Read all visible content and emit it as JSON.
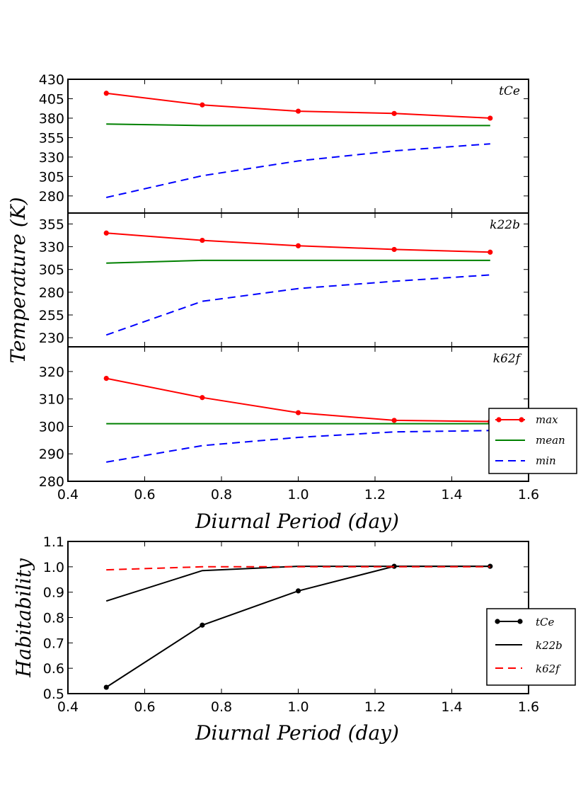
{
  "chart_data": [
    {
      "type": "line",
      "title": "",
      "xlabel": "Diurnal Period (day)",
      "ylabel": "Temperature (K)",
      "xlim": [
        0.4,
        1.6
      ],
      "xticks": [
        "0.4",
        "0.6",
        "0.8",
        "1.0",
        "1.2",
        "1.4",
        "1.6"
      ],
      "x": [
        0.5,
        0.75,
        1.0,
        1.25,
        1.5
      ],
      "legend": {
        "placement": "right, beside bottom panel",
        "entries": [
          "max",
          "mean",
          "min"
        ]
      },
      "colors": {
        "max": "#ff0000",
        "mean": "#008000",
        "min": "#0000ff"
      },
      "panels": [
        {
          "label": "tCe",
          "ylim": [
            258,
            430
          ],
          "yticks": [
            "280",
            "305",
            "330",
            "355",
            "380",
            "405",
            "430"
          ],
          "series": [
            {
              "name": "max",
              "style": "solid-dots",
              "values": [
                412,
                397,
                389,
                386,
                380
              ]
            },
            {
              "name": "mean",
              "style": "solid",
              "values": [
                372.5,
                370.5,
                370.5,
                370.5,
                370.5
              ]
            },
            {
              "name": "min",
              "style": "dashed",
              "values": [
                278,
                306,
                325,
                338,
                347
              ]
            }
          ]
        },
        {
          "label": "k22b",
          "ylim": [
            220,
            367
          ],
          "yticks": [
            "230",
            "255",
            "280",
            "305",
            "330",
            "355"
          ],
          "series": [
            {
              "name": "max",
              "style": "solid-dots",
              "values": [
                345,
                337,
                331,
                327,
                324
              ]
            },
            {
              "name": "mean",
              "style": "solid",
              "values": [
                312,
                315,
                315,
                315,
                315
              ]
            },
            {
              "name": "min",
              "style": "dashed",
              "values": [
                233,
                270,
                284,
                292,
                299
              ]
            }
          ]
        },
        {
          "label": "k62f",
          "ylim": [
            280,
            329
          ],
          "yticks": [
            "280",
            "290",
            "300",
            "310",
            "320"
          ],
          "series": [
            {
              "name": "max",
              "style": "solid-dots",
              "values": [
                317.5,
                310.5,
                305,
                302.2,
                301.8
              ]
            },
            {
              "name": "mean",
              "style": "solid",
              "values": [
                301,
                301,
                301,
                301,
                301
              ]
            },
            {
              "name": "min",
              "style": "dashed",
              "values": [
                287,
                293,
                296,
                298,
                298.5
              ]
            }
          ]
        }
      ]
    },
    {
      "type": "line",
      "title": "",
      "xlabel": "Diurnal Period (day)",
      "ylabel": "Habitability",
      "xlim": [
        0.4,
        1.6
      ],
      "ylim": [
        0.5,
        1.1
      ],
      "xticks": [
        "0.4",
        "0.6",
        "0.8",
        "1.0",
        "1.2",
        "1.4",
        "1.6"
      ],
      "yticks": [
        "0.5",
        "0.6",
        "0.7",
        "0.8",
        "0.9",
        "1.0",
        "1.1"
      ],
      "x": [
        0.5,
        0.75,
        1.0,
        1.25,
        1.5
      ],
      "legend": {
        "placement": "right",
        "entries": [
          "tCe",
          "k22b",
          "k62f"
        ]
      },
      "series": [
        {
          "name": "tCe",
          "color": "#000000",
          "style": "solid-dots",
          "values": [
            0.525,
            0.77,
            0.905,
            1.002,
            1.002
          ]
        },
        {
          "name": "k22b",
          "color": "#000000",
          "style": "solid",
          "values": [
            0.865,
            0.985,
            1.002,
            1.002,
            1.002
          ]
        },
        {
          "name": "k62f",
          "color": "#ff0000",
          "style": "dashed",
          "values": [
            0.988,
            1.0,
            1.0,
            1.0,
            1.0
          ]
        }
      ]
    }
  ]
}
